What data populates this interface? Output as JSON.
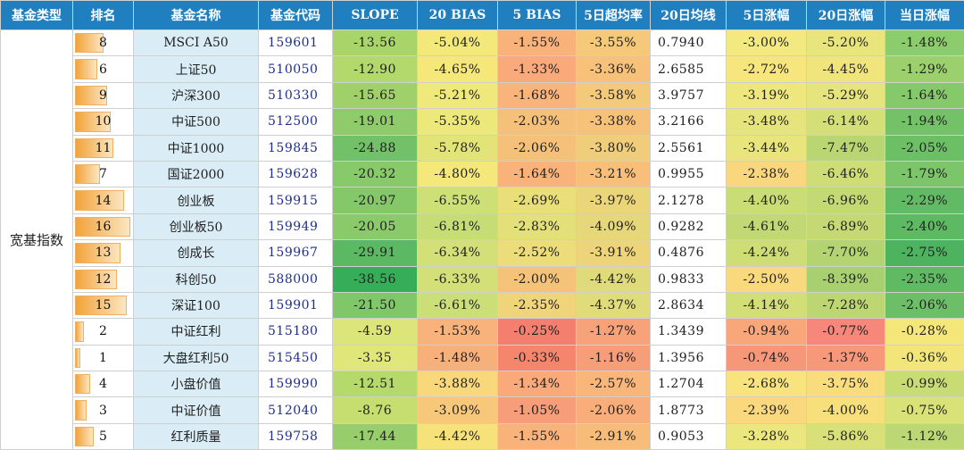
{
  "headers": [
    "基金类型",
    "排名",
    "基金名称",
    "基金代码",
    "SLOPE",
    "20 BIAS",
    "5 BIAS",
    "5日超均率",
    "20日均线",
    "5日涨幅",
    "20日涨幅",
    "当日涨幅"
  ],
  "type_label": "宽基指数",
  "rank_max": 16,
  "rows": [
    {
      "rank": "8",
      "name": "MSCI A50",
      "code": "159601",
      "slope": "-13.56",
      "bias20": "-5.04%",
      "bias5": "-1.55%",
      "excess5": "-3.55%",
      "ma20": "0.7940",
      "chg5": "-3.00%",
      "chg20": "-5.20%",
      "chg1": "-1.48%",
      "colors": [
        "#a9d46a",
        "#f3e97a",
        "#f9b27a",
        "#f5c87a",
        "#ffffff",
        "#f2ea80",
        "#e8e57c",
        "#8dcc6c"
      ]
    },
    {
      "rank": "6",
      "name": "上证50",
      "code": "510050",
      "slope": "-12.90",
      "bias20": "-4.65%",
      "bias5": "-1.33%",
      "excess5": "-3.36%",
      "ma20": "2.6585",
      "chg5": "-2.72%",
      "chg20": "-4.45%",
      "chg1": "-1.29%",
      "colors": [
        "#b3d86c",
        "#f6e77a",
        "#f9a97a",
        "#f7c17a",
        "#ffffff",
        "#f7e57e",
        "#f0e47c",
        "#9bd06c"
      ]
    },
    {
      "rank": "9",
      "name": "沪深300",
      "code": "510330",
      "slope": "-15.65",
      "bias20": "-5.21%",
      "bias5": "-1.68%",
      "excess5": "-3.58%",
      "ma20": "3.9757",
      "chg5": "-3.19%",
      "chg20": "-5.29%",
      "chg1": "-1.64%",
      "colors": [
        "#a0d06a",
        "#efe87a",
        "#f8b47a",
        "#f3c97a",
        "#ffffff",
        "#eee77e",
        "#e6e47c",
        "#86c96a"
      ]
    },
    {
      "rank": "10",
      "name": "中证500",
      "code": "512500",
      "slope": "-19.01",
      "bias20": "-5.35%",
      "bias5": "-2.03%",
      "excess5": "-3.38%",
      "ma20": "3.2166",
      "chg5": "-3.48%",
      "chg20": "-6.14%",
      "chg1": "-1.94%",
      "colors": [
        "#8fcb6a",
        "#ece87a",
        "#f5c07a",
        "#f6c27a",
        "#ffffff",
        "#e6e47c",
        "#d4df78",
        "#74c268"
      ]
    },
    {
      "rank": "11",
      "name": "中证1000",
      "code": "159845",
      "slope": "-24.88",
      "bias20": "-5.78%",
      "bias5": "-2.06%",
      "excess5": "-3.80%",
      "ma20": "2.5561",
      "chg5": "-3.44%",
      "chg20": "-7.47%",
      "chg1": "-2.05%",
      "colors": [
        "#72c168",
        "#e2e478",
        "#f5c17a",
        "#f0cd7a",
        "#ffffff",
        "#e7e57c",
        "#b9d672",
        "#6dbf66"
      ]
    },
    {
      "rank": "7",
      "name": "国证2000",
      "code": "159628",
      "slope": "-20.32",
      "bias20": "-4.80%",
      "bias5": "-1.64%",
      "excess5": "-3.21%",
      "ma20": "0.9955",
      "chg5": "-2.38%",
      "chg20": "-6.46%",
      "chg1": "-1.79%",
      "colors": [
        "#88c96a",
        "#f4e87a",
        "#f8b27a",
        "#f8bf7a",
        "#ffffff",
        "#f9d77e",
        "#cedd76",
        "#7dc56a"
      ]
    },
    {
      "rank": "14",
      "name": "创业板",
      "code": "159915",
      "slope": "-20.97",
      "bias20": "-6.55%",
      "bias5": "-2.69%",
      "excess5": "-3.97%",
      "ma20": "2.1278",
      "chg5": "-4.40%",
      "chg20": "-6.96%",
      "chg1": "-2.29%",
      "colors": [
        "#85c86a",
        "#cde078",
        "#e8de7a",
        "#ebd57a",
        "#ffffff",
        "#cadc76",
        "#c3d974",
        "#62bb64"
      ]
    },
    {
      "rank": "16",
      "name": "创业板50",
      "code": "159949",
      "slope": "-20.05",
      "bias20": "-6.81%",
      "bias5": "-2.83%",
      "excess5": "-4.09%",
      "ma20": "0.9282",
      "chg5": "-4.61%",
      "chg20": "-6.89%",
      "chg1": "-2.40%",
      "colors": [
        "#8aca6a",
        "#c6dd76",
        "#e3e07a",
        "#e6d87a",
        "#ffffff",
        "#c2d874",
        "#c4d974",
        "#5db962"
      ]
    },
    {
      "rank": "13",
      "name": "创成长",
      "code": "159967",
      "slope": "-29.91",
      "bias20": "-6.34%",
      "bias5": "-2.52%",
      "excess5": "-3.91%",
      "ma20": "0.4876",
      "chg5": "-4.24%",
      "chg20": "-7.70%",
      "chg1": "-2.75%",
      "colors": [
        "#5cb963",
        "#d3e078",
        "#ecdd7a",
        "#edd37a",
        "#ffffff",
        "#cfdd76",
        "#b4d472",
        "#4db35e"
      ]
    },
    {
      "rank": "12",
      "name": "科创50",
      "code": "588000",
      "slope": "-38.56",
      "bias20": "-6.33%",
      "bias5": "-2.00%",
      "excess5": "-4.42%",
      "ma20": "0.9833",
      "chg5": "-2.50%",
      "chg20": "-8.39%",
      "chg1": "-2.35%",
      "colors": [
        "#36ad58",
        "#d3e078",
        "#f5c27a",
        "#dfdb7a",
        "#ffffff",
        "#f9d97e",
        "#a8d070",
        "#5fba63"
      ]
    },
    {
      "rank": "15",
      "name": "深证100",
      "code": "159901",
      "slope": "-21.50",
      "bias20": "-6.61%",
      "bias5": "-2.35%",
      "excess5": "-4.37%",
      "ma20": "2.8634",
      "chg5": "-4.14%",
      "chg20": "-7.28%",
      "chg1": "-2.06%",
      "colors": [
        "#80c76a",
        "#cbdf78",
        "#f0d47a",
        "#e0dc7a",
        "#ffffff",
        "#d2de76",
        "#bcd772",
        "#6cbf66"
      ]
    },
    {
      "rank": "2",
      "name": "中证红利",
      "code": "515180",
      "slope": "-4.59",
      "bias20": "-1.53%",
      "bias5": "-0.25%",
      "excess5": "-1.27%",
      "ma20": "1.3439",
      "chg5": "-0.94%",
      "chg20": "-0.77%",
      "chg1": "-0.28%",
      "colors": [
        "#dce57a",
        "#f8b27a",
        "#f57f6e",
        "#f8a27a",
        "#ffffff",
        "#f8a67a",
        "#f6877a",
        "#f5e67a"
      ]
    },
    {
      "rank": "1",
      "name": "大盘红利50",
      "code": "515450",
      "slope": "-3.35",
      "bias20": "-1.48%",
      "bias5": "-0.33%",
      "excess5": "-1.16%",
      "ma20": "1.3956",
      "chg5": "-0.74%",
      "chg20": "-1.37%",
      "chg1": "-0.36%",
      "colors": [
        "#e0e67a",
        "#f8b07a",
        "#f6856e",
        "#f79d7a",
        "#ffffff",
        "#f6977a",
        "#f7987a",
        "#f2e67a"
      ]
    },
    {
      "rank": "4",
      "name": "小盘价值",
      "code": "159990",
      "slope": "-12.51",
      "bias20": "-3.88%",
      "bias5": "-1.34%",
      "excess5": "-2.57%",
      "ma20": "1.2704",
      "chg5": "-2.68%",
      "chg20": "-3.75%",
      "chg1": "-0.99%",
      "colors": [
        "#b6d96c",
        "#f8d87a",
        "#f9a97a",
        "#f9b67a",
        "#ffffff",
        "#f8e37e",
        "#f9dd7c",
        "#c7dd74"
      ]
    },
    {
      "rank": "3",
      "name": "中证价值",
      "code": "512040",
      "slope": "-8.76",
      "bias20": "-3.09%",
      "bias5": "-1.05%",
      "excess5": "-2.06%",
      "ma20": "1.8773",
      "chg5": "-2.39%",
      "chg20": "-4.00%",
      "chg1": "-0.75%",
      "colors": [
        "#c6de70",
        "#f8c87a",
        "#f89d7a",
        "#f8ad7a",
        "#ffffff",
        "#f9d87e",
        "#f7e07c",
        "#d8e276"
      ]
    },
    {
      "rank": "5",
      "name": "红利质量",
      "code": "159758",
      "slope": "-17.44",
      "bias20": "-4.42%",
      "bias5": "-1.55%",
      "excess5": "-2.91%",
      "ma20": "0.9053",
      "chg5": "-3.28%",
      "chg20": "-5.86%",
      "chg1": "-1.12%",
      "colors": [
        "#97cd6a",
        "#f7e27a",
        "#f9b27a",
        "#f8bc7a",
        "#ffffff",
        "#ece67e",
        "#d9e078",
        "#bcd874"
      ]
    }
  ]
}
